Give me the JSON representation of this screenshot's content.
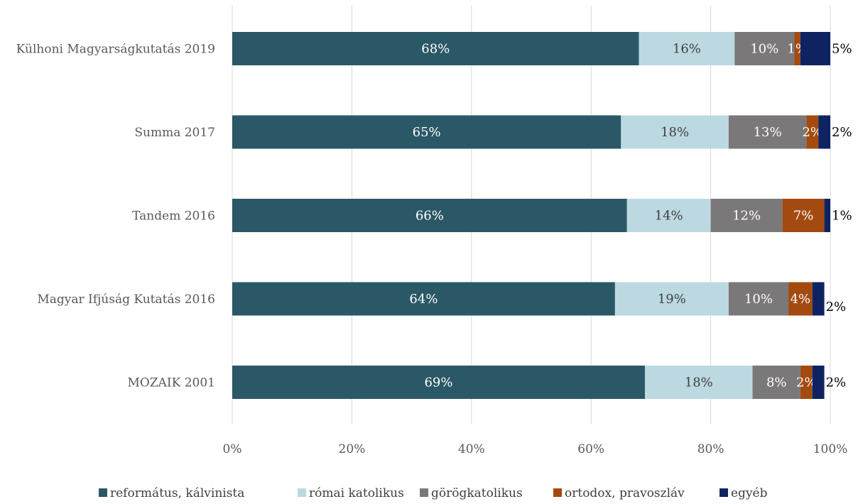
{
  "chart_data": {
    "type": "bar",
    "orientation": "horizontal",
    "stacked": "percent",
    "categories": [
      "Külhoni Magyarságkutatás 2019",
      "Summa 2017",
      "Tandem 2016",
      "Magyar Ifjúság Kutatás 2016",
      "MOZAIK 2001"
    ],
    "series": [
      {
        "name": "református, kálvinista",
        "color": "#2a5866",
        "label_color": "#ffffff",
        "values": [
          68,
          65,
          66,
          64,
          69
        ],
        "labels": [
          "68%",
          "65%",
          "66%",
          "64%",
          "69%"
        ]
      },
      {
        "name": "római katolikus",
        "color": "#bcd9e2",
        "label_color": "#404040",
        "values": [
          16,
          18,
          14,
          19,
          18
        ],
        "labels": [
          "16%",
          "18%",
          "14%",
          "19%",
          "18%"
        ]
      },
      {
        "name": "görögkatolikus",
        "color": "#7a7878",
        "label_color": "#ffffff",
        "values": [
          10,
          13,
          12,
          10,
          8
        ],
        "labels": [
          "10%",
          "13%",
          "12%",
          "10%",
          "8%"
        ]
      },
      {
        "name": "ortodox, pravoszláv",
        "color": "#a34a10",
        "label_color": "#ffffff",
        "values": [
          1,
          2,
          7,
          4,
          2
        ],
        "labels": [
          "1%",
          "2%",
          "7%",
          "4%",
          "2%"
        ]
      },
      {
        "name": "egyéb",
        "color": "#0f2363",
        "label_color": "#000000",
        "values": [
          5,
          2,
          1,
          2,
          2
        ],
        "labels": [
          "5%",
          "2%",
          "1%",
          "2%",
          "2%"
        ]
      }
    ],
    "xlim": [
      0,
      100
    ],
    "x_ticks": [
      "0%",
      "20%",
      "40%",
      "60%",
      "80%",
      "100%"
    ],
    "grid": true,
    "legend_position": "bottom",
    "title": "",
    "xlabel": "",
    "ylabel": ""
  }
}
